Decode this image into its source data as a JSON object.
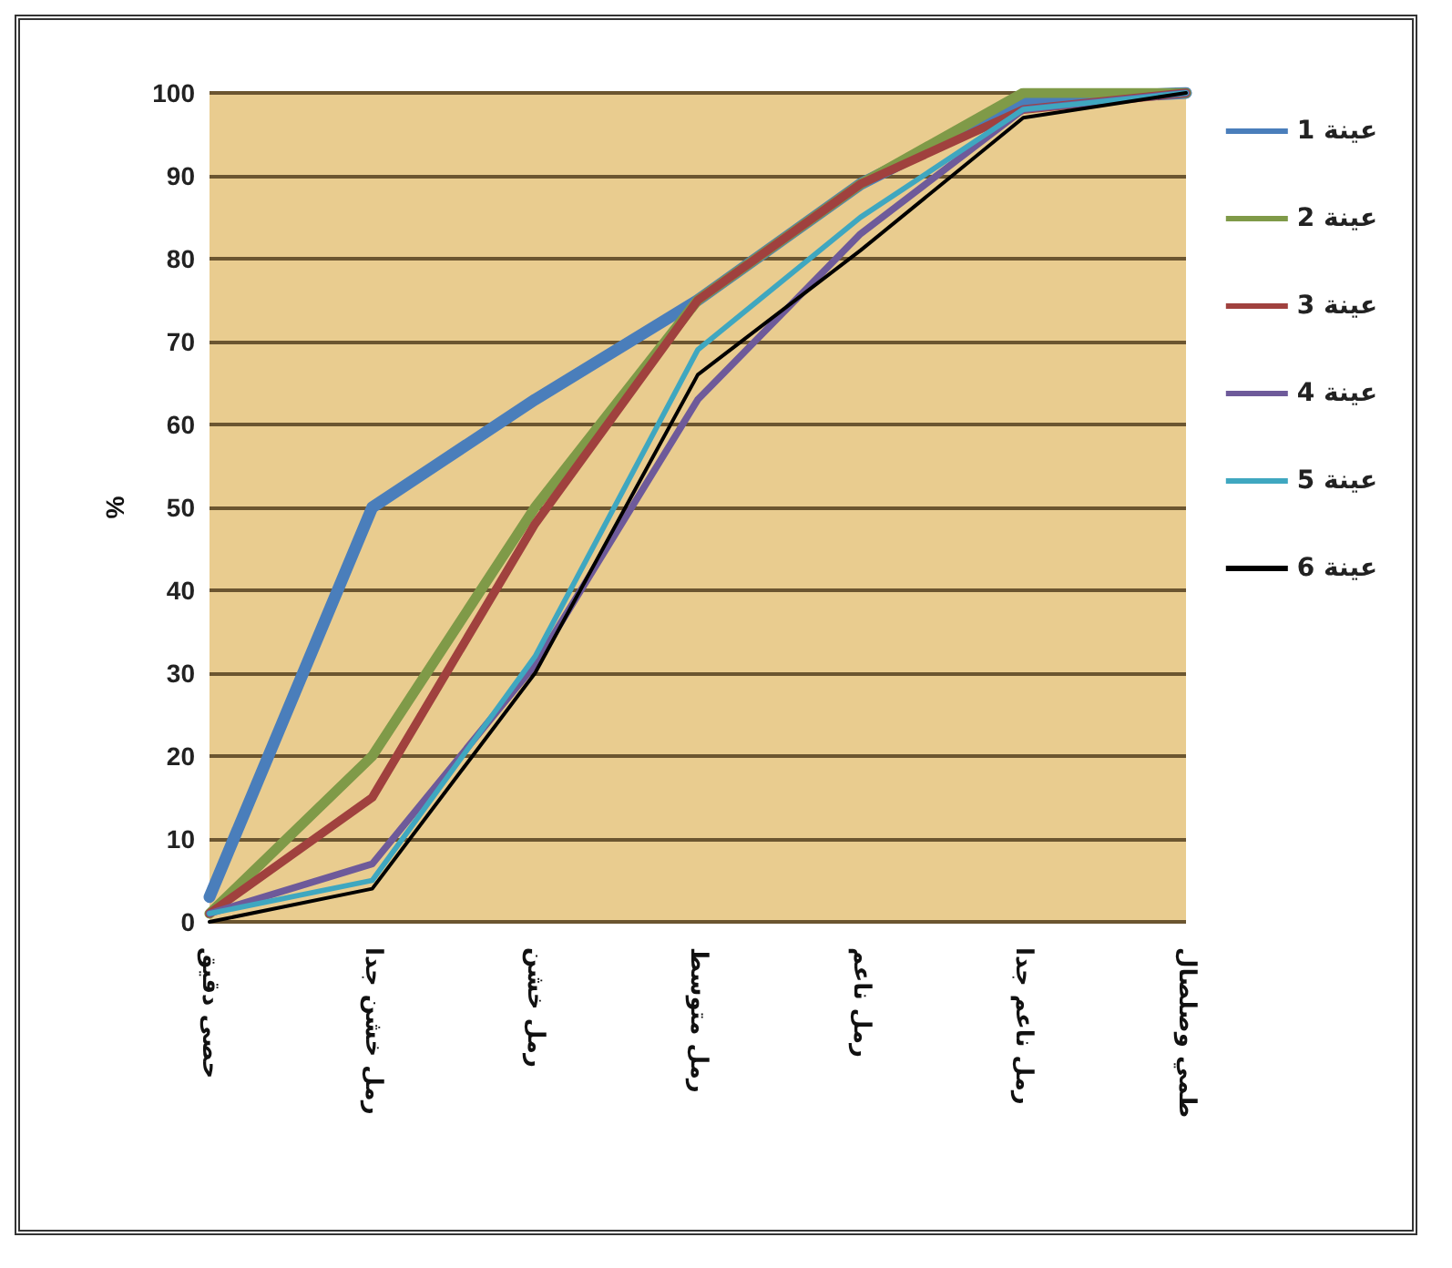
{
  "chart_data": {
    "type": "line",
    "ylabel": "%",
    "categories": [
      "حصى دقيق",
      "رمل خشن جدا",
      "رمل خشن",
      "رمل متوسط",
      "رمل ناعم",
      "رمل ناعم جدا",
      "طمي وصلصال"
    ],
    "ylim": [
      0,
      100
    ],
    "yticks": [
      0,
      10,
      20,
      30,
      40,
      50,
      60,
      70,
      80,
      90,
      100
    ],
    "grid": "y",
    "legend": "right",
    "marker": "none",
    "series": [
      {
        "name": "عينة 1",
        "color": "#4a7ebb",
        "values": [
          3,
          50,
          63,
          75,
          89,
          99,
          100
        ]
      },
      {
        "name": "عينة 2",
        "color": "#7f9a48",
        "values": [
          1,
          20,
          50,
          75,
          89,
          100,
          100
        ]
      },
      {
        "name": "عينة 3",
        "color": "#a0413e",
        "values": [
          1,
          15,
          48,
          75,
          89,
          98,
          100
        ]
      },
      {
        "name": "عينة 4",
        "color": "#6e5a9a",
        "values": [
          1,
          7,
          31,
          63,
          83,
          98,
          100
        ]
      },
      {
        "name": "عينة 5",
        "color": "#3fa7c0",
        "values": [
          1,
          5,
          32,
          69,
          85,
          98,
          100
        ]
      },
      {
        "name": "عينة 6",
        "color": "#000000",
        "values": [
          0,
          4,
          30,
          66,
          81,
          97,
          100
        ]
      }
    ]
  }
}
